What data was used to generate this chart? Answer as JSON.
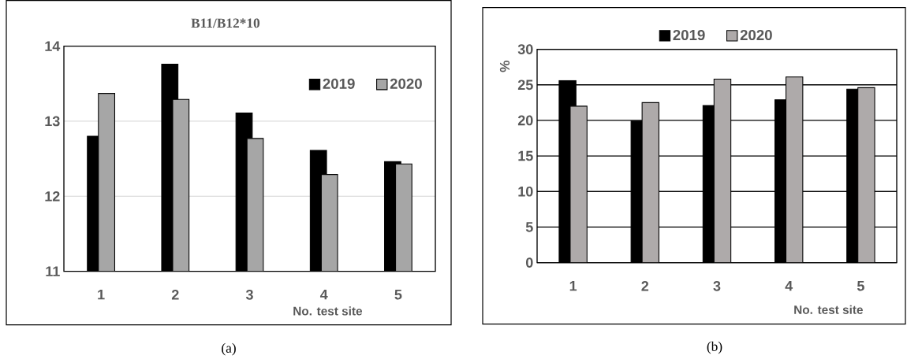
{
  "chart_data": [
    {
      "type": "bar",
      "title": "B11/B12*10",
      "xlabel": "No. test site",
      "categories": [
        "1",
        "2",
        "3",
        "4",
        "5"
      ],
      "series": [
        {
          "name": "2019",
          "color": "#000000",
          "values": [
            12.8,
            13.76,
            13.11,
            12.61,
            12.46
          ]
        },
        {
          "name": "2020",
          "color": "#a6a6a6",
          "values": [
            13.37,
            13.29,
            12.77,
            12.29,
            12.43
          ]
        }
      ],
      "ylim": [
        11,
        14
      ],
      "yticks": [
        11,
        12,
        13,
        14
      ],
      "grid": "y",
      "legend": "top right",
      "annotations": [
        "(a)"
      ]
    },
    {
      "type": "bar",
      "xlabel": "No. test site",
      "ylabel": "%",
      "categories": [
        "1",
        "2",
        "3",
        "4",
        "5"
      ],
      "series": [
        {
          "name": "2019",
          "color": "#000000",
          "values": [
            25.6,
            19.9,
            22.1,
            22.9,
            24.4
          ]
        },
        {
          "name": "2020",
          "color": "#aeaaaa",
          "values": [
            22.0,
            22.5,
            25.8,
            26.1,
            24.6
          ]
        }
      ],
      "ylim": [
        0,
        30
      ],
      "yticks": [
        0,
        5,
        10,
        15,
        20,
        25,
        30
      ],
      "grid": "y",
      "legend": "top",
      "annotations": [
        "(b)"
      ]
    }
  ]
}
